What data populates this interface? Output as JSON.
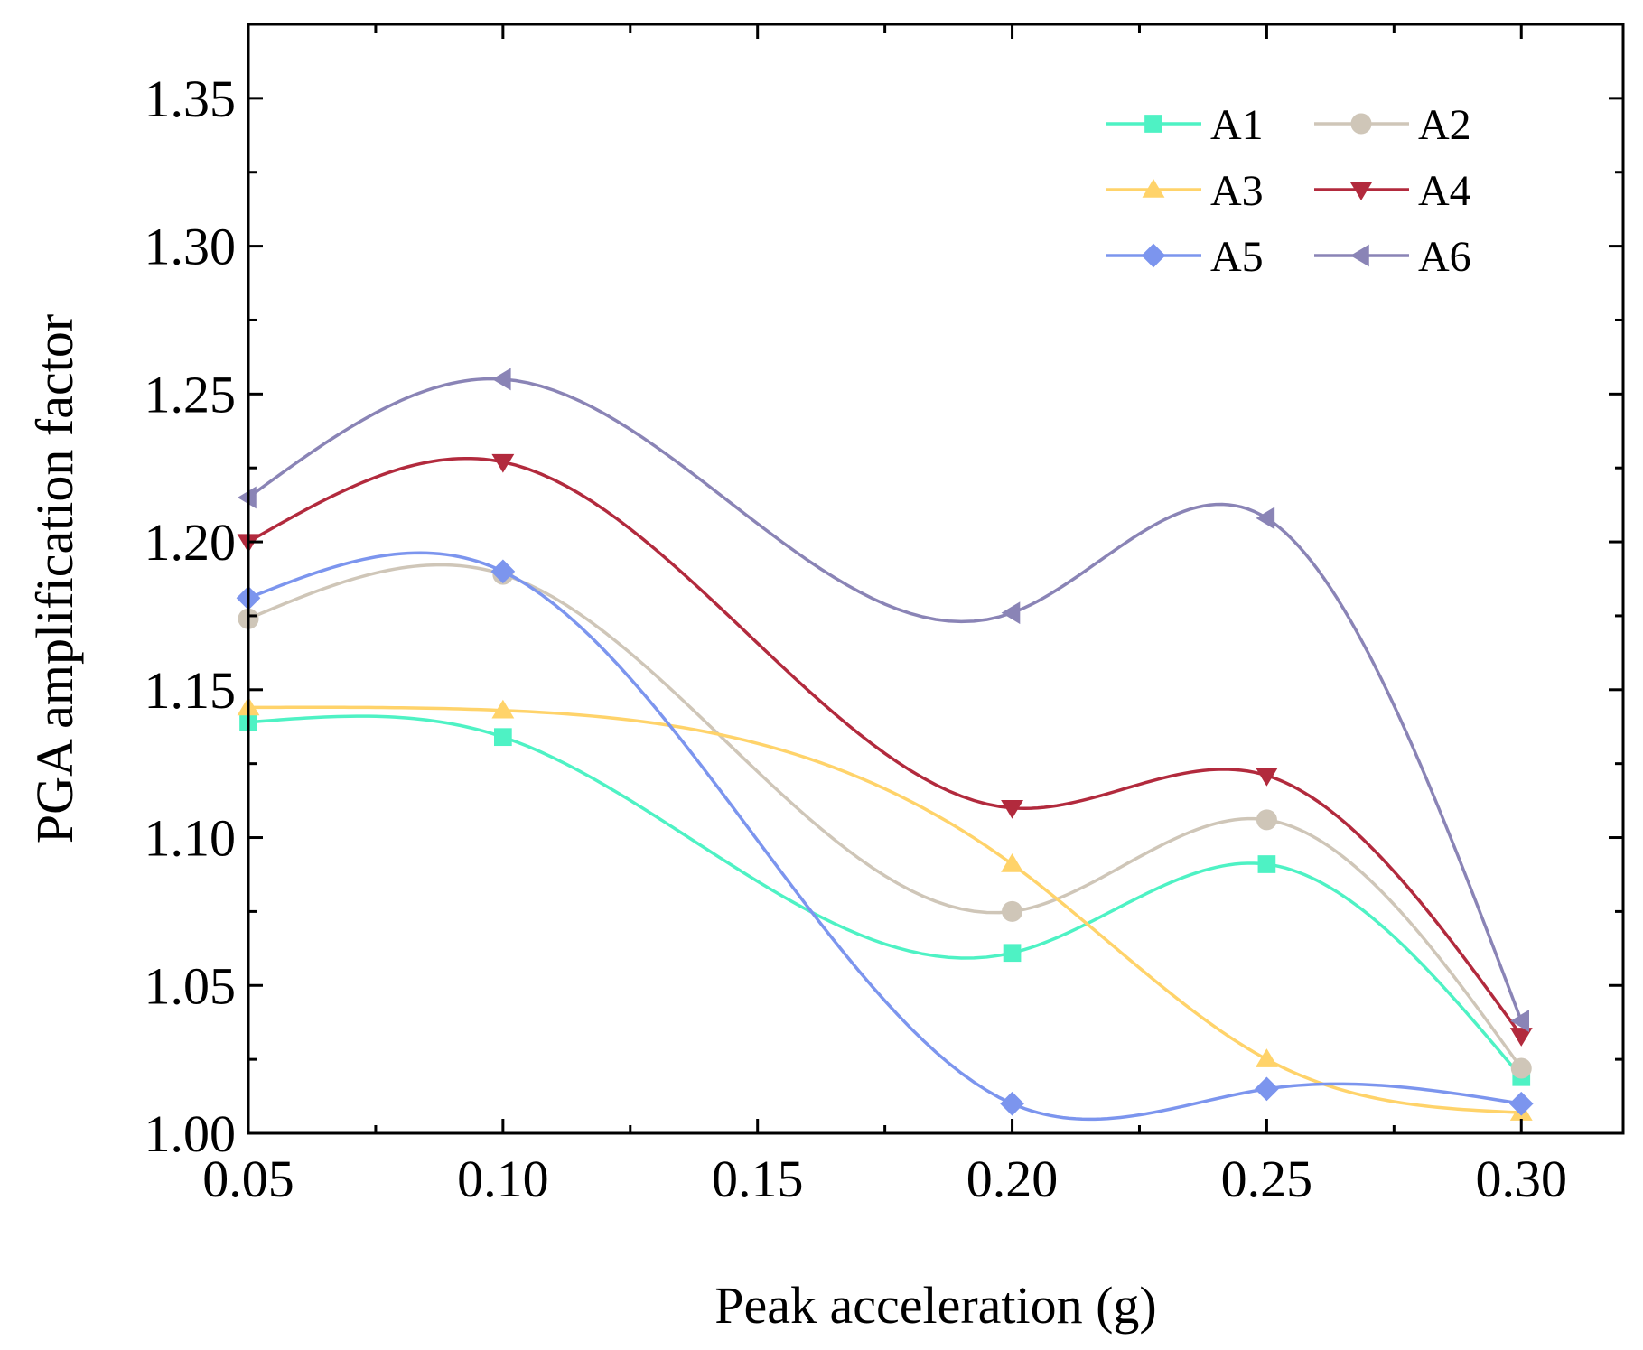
{
  "chart_data": {
    "type": "line",
    "xlabel": "Peak acceleration (g)",
    "ylabel": "PGA amplification factor",
    "xlim": [
      0.05,
      0.32
    ],
    "ylim": [
      1.0,
      1.375
    ],
    "x_ticks": [
      0.05,
      0.1,
      0.15,
      0.2,
      0.25,
      0.3
    ],
    "x_tick_labels": [
      "0.05",
      "0.10",
      "0.15",
      "0.20",
      "0.25",
      "0.30"
    ],
    "y_ticks": [
      1.0,
      1.05,
      1.1,
      1.15,
      1.2,
      1.25,
      1.3,
      1.35
    ],
    "y_tick_labels": [
      "1.00",
      "1.05",
      "1.10",
      "1.15",
      "1.20",
      "1.25",
      "1.30",
      "1.35"
    ],
    "x": [
      0.05,
      0.1,
      0.2,
      0.25,
      0.3
    ],
    "legend_position": "top-right",
    "smooth": true,
    "series": [
      {
        "name": "A1",
        "color": "#4ef2c4",
        "marker": "square",
        "values": [
          1.139,
          1.134,
          1.061,
          1.091,
          1.019
        ]
      },
      {
        "name": "A2",
        "color": "#cfc6b8",
        "marker": "circle",
        "values": [
          1.174,
          1.189,
          1.075,
          1.106,
          1.022
        ]
      },
      {
        "name": "A3",
        "color": "#ffd36a",
        "marker": "triangle-up",
        "values": [
          1.144,
          1.143,
          1.091,
          1.025,
          1.007
        ]
      },
      {
        "name": "A4",
        "color": "#b22a3d",
        "marker": "triangle-down",
        "values": [
          1.2,
          1.227,
          1.11,
          1.121,
          1.033
        ]
      },
      {
        "name": "A5",
        "color": "#7c95ee",
        "marker": "diamond",
        "values": [
          1.181,
          1.19,
          1.01,
          1.015,
          1.01
        ]
      },
      {
        "name": "A6",
        "color": "#8a84b6",
        "marker": "triangle-left",
        "values": [
          1.215,
          1.255,
          1.176,
          1.208,
          1.038
        ]
      }
    ]
  }
}
